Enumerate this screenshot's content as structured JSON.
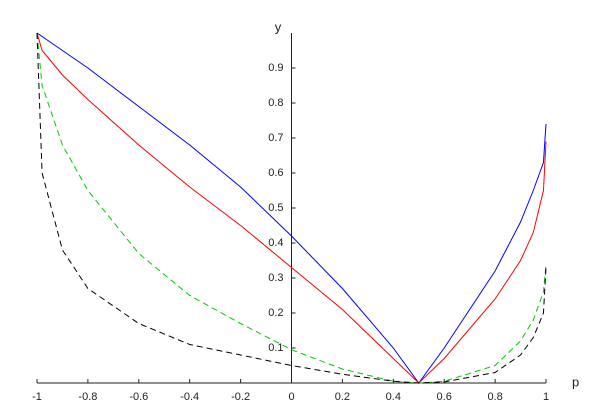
{
  "chart_data": {
    "type": "line",
    "xlabel": "p",
    "ylabel": "y",
    "x": [
      -1,
      -0.98,
      -0.9,
      -0.8,
      -0.6,
      -0.4,
      -0.2,
      0,
      0.2,
      0.4,
      0.5,
      0.6,
      0.8,
      0.9,
      0.95,
      0.99,
      1
    ],
    "series": [
      {
        "color": "#0000ff",
        "dashed": false,
        "values": [
          1,
          0.99,
          0.95,
          0.9,
          0.79,
          0.68,
          0.56,
          0.42,
          0.27,
          0.1,
          0,
          0.1,
          0.32,
          0.46,
          0.55,
          0.63,
          0.74
        ]
      },
      {
        "color": "#ff0000",
        "dashed": false,
        "values": [
          1,
          0.95,
          0.88,
          0.81,
          0.68,
          0.56,
          0.45,
          0.33,
          0.21,
          0.07,
          0,
          0.07,
          0.24,
          0.35,
          0.43,
          0.55,
          0.69
        ]
      },
      {
        "color": "#00cc00",
        "dashed": true,
        "values": [
          1,
          0.85,
          0.68,
          0.55,
          0.37,
          0.25,
          0.17,
          0.095,
          0.04,
          0.005,
          0,
          0.005,
          0.05,
          0.12,
          0.18,
          0.26,
          0.34
        ]
      },
      {
        "color": "#000000",
        "dashed": true,
        "values": [
          1,
          0.6,
          0.38,
          0.27,
          0.17,
          0.11,
          0.08,
          0.05,
          0.025,
          0.005,
          0,
          0.003,
          0.03,
          0.08,
          0.13,
          0.2,
          0.33
        ]
      }
    ],
    "xlim": [
      -1,
      1
    ],
    "ylim": [
      0,
      1
    ],
    "xticks": [
      -1,
      -0.8,
      -0.6,
      -0.4,
      -0.2,
      0,
      0.2,
      0.4,
      0.6,
      0.8,
      1
    ],
    "yticks": [
      0.1,
      0.2,
      0.3,
      0.4,
      0.5,
      0.6,
      0.7,
      0.8,
      0.9
    ]
  }
}
